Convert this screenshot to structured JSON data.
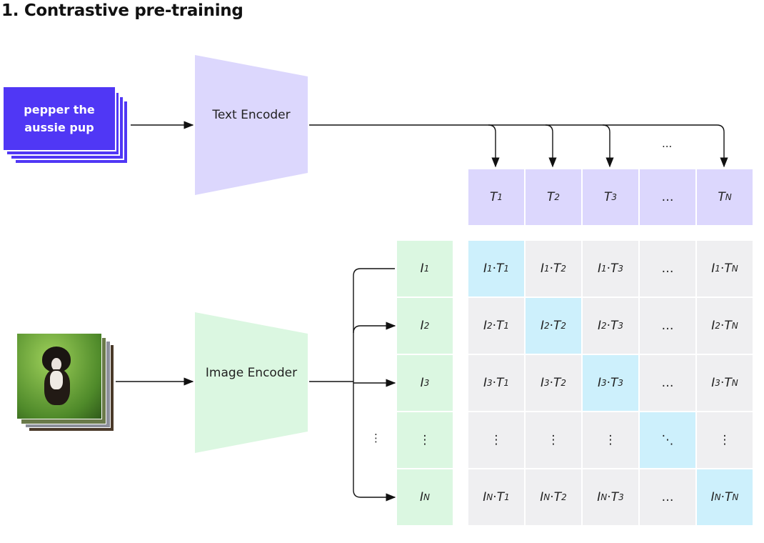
{
  "title": "1. Contrastive pre-training",
  "text_input": "pepper the aussie pup",
  "image_input_alt": "photo of a puppy",
  "text_encoder": "Text Encoder",
  "image_encoder": "Image Encoder",
  "ellipsis": "...",
  "vdots": "⋮",
  "ddots": "⋱",
  "colors": {
    "text_card": "#5037f5",
    "text_enc": "#dcd7fd",
    "image_enc": "#dbf7e1",
    "diag": "#cdf0fc",
    "cell": "#efeff1"
  },
  "text_embeddings": [
    [
      "T",
      "1"
    ],
    [
      "T",
      "2"
    ],
    [
      "T",
      "3"
    ],
    [
      "…",
      ""
    ],
    [
      "T",
      "N"
    ]
  ],
  "image_embeddings": [
    [
      "I",
      "1"
    ],
    [
      "I",
      "2"
    ],
    [
      "I",
      "3"
    ],
    [
      "⋮",
      ""
    ],
    [
      "I",
      "N"
    ]
  ],
  "matrix": [
    [
      "I1·T1",
      "I1·T2",
      "I1·T3",
      "…",
      "I1·TN"
    ],
    [
      "I2·T1",
      "I2·T2",
      "I2·T3",
      "…",
      "I2·TN"
    ],
    [
      "I3·T1",
      "I3·T2",
      "I3·T3",
      "…",
      "I3·TN"
    ],
    [
      "⋮",
      "⋮",
      "⋮",
      "⋱",
      "⋮"
    ],
    [
      "IN·T1",
      "IN·T2",
      "IN·T3",
      "…",
      "IN·TN"
    ]
  ]
}
